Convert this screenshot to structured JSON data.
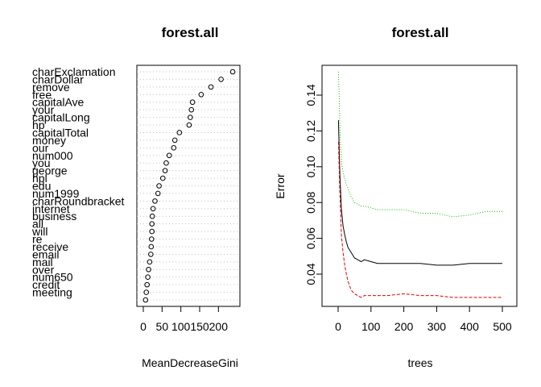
{
  "chart_data": [
    {
      "type": "scatter",
      "title": "forest.all",
      "xlabel": "MeanDecreaseGini",
      "ylabel": "",
      "xlim": [
        0,
        240
      ],
      "x_ticks": [
        0,
        50,
        100,
        150,
        200
      ],
      "grid": "dotted row lines",
      "points": [
        {
          "name": "charExclamation",
          "value": 238
        },
        {
          "name": "charDollar",
          "value": 207
        },
        {
          "name": "remove",
          "value": 180
        },
        {
          "name": "free",
          "value": 154
        },
        {
          "name": "capitalAve",
          "value": 131
        },
        {
          "name": "your",
          "value": 128
        },
        {
          "name": "capitalLong",
          "value": 125
        },
        {
          "name": "hp",
          "value": 122
        },
        {
          "name": "capitalTotal",
          "value": 96
        },
        {
          "name": "money",
          "value": 84
        },
        {
          "name": "our",
          "value": 81
        },
        {
          "name": "num000",
          "value": 69
        },
        {
          "name": "you",
          "value": 61
        },
        {
          "name": "george",
          "value": 58
        },
        {
          "name": "hpl",
          "value": 52
        },
        {
          "name": "edu",
          "value": 42
        },
        {
          "name": "num1999",
          "value": 39
        },
        {
          "name": "charRoundbracket",
          "value": 31
        },
        {
          "name": "internet",
          "value": 26
        },
        {
          "name": "business",
          "value": 24
        },
        {
          "name": "all",
          "value": 23
        },
        {
          "name": "will",
          "value": 23
        },
        {
          "name": "re",
          "value": 22
        },
        {
          "name": "receive",
          "value": 21
        },
        {
          "name": "email",
          "value": 20
        },
        {
          "name": "mail",
          "value": 17
        },
        {
          "name": "over",
          "value": 14
        },
        {
          "name": "num650",
          "value": 12
        },
        {
          "name": "credit",
          "value": 10
        },
        {
          "name": "meeting",
          "value": 8
        },
        {
          "name": "",
          "value": 6
        }
      ]
    },
    {
      "type": "line",
      "title": "forest.all",
      "xlabel": "trees",
      "ylabel": "Error",
      "xlim": [
        0,
        500
      ],
      "ylim": [
        0.025,
        0.155
      ],
      "x_ticks": [
        0,
        100,
        200,
        300,
        400,
        500
      ],
      "y_ticks": [
        "0.04",
        "0.06",
        "0.08",
        "0.10",
        "0.12",
        "0.14"
      ],
      "series": [
        {
          "color": "#000000",
          "x": [
            1,
            3,
            5,
            8,
            10,
            15,
            20,
            25,
            30,
            40,
            50,
            60,
            70,
            80,
            100,
            120,
            150,
            200,
            250,
            300,
            350,
            400,
            450,
            500
          ],
          "y": [
            0.126,
            0.112,
            0.098,
            0.084,
            0.076,
            0.067,
            0.062,
            0.058,
            0.055,
            0.052,
            0.049,
            0.048,
            0.047,
            0.048,
            0.047,
            0.046,
            0.046,
            0.046,
            0.046,
            0.045,
            0.045,
            0.046,
            0.046,
            0.046
          ]
        },
        {
          "color": "#df0000",
          "x": [
            1,
            3,
            5,
            8,
            10,
            15,
            20,
            25,
            30,
            40,
            50,
            60,
            70,
            80,
            100,
            120,
            150,
            200,
            250,
            300,
            350,
            400,
            450,
            500
          ],
          "y": [
            0.114,
            0.101,
            0.088,
            0.072,
            0.062,
            0.052,
            0.045,
            0.04,
            0.036,
            0.031,
            0.029,
            0.028,
            0.027,
            0.028,
            0.028,
            0.028,
            0.028,
            0.029,
            0.028,
            0.028,
            0.027,
            0.027,
            0.027,
            0.027
          ]
        },
        {
          "color": "#00c000",
          "x": [
            1,
            3,
            5,
            8,
            10,
            15,
            20,
            25,
            30,
            40,
            50,
            60,
            70,
            80,
            100,
            120,
            150,
            200,
            250,
            300,
            350,
            400,
            450,
            500
          ],
          "y": [
            0.153,
            0.141,
            0.126,
            0.11,
            0.103,
            0.097,
            0.093,
            0.09,
            0.088,
            0.083,
            0.08,
            0.079,
            0.078,
            0.078,
            0.077,
            0.076,
            0.076,
            0.076,
            0.074,
            0.074,
            0.072,
            0.073,
            0.075,
            0.075
          ]
        }
      ]
    }
  ]
}
